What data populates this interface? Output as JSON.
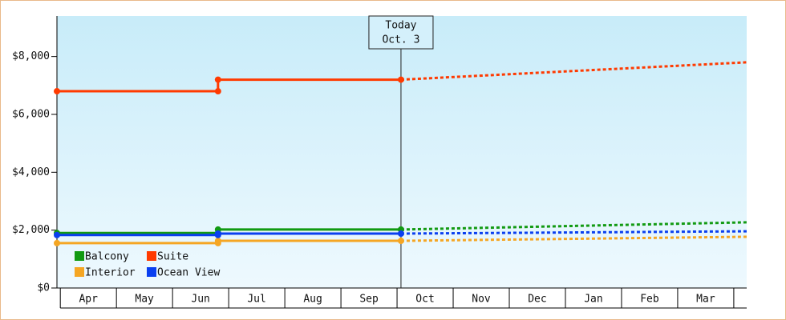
{
  "chart_data": {
    "type": "line",
    "x": [
      -0.06,
      2.81,
      2.81,
      6.07,
      12.23
    ],
    "xlim": [
      -0.06,
      12.23
    ],
    "categories": [
      "Apr",
      "May",
      "Jun",
      "Jul",
      "Aug",
      "Sep",
      "Oct",
      "Nov",
      "Dec",
      "Jan",
      "Feb",
      "Mar"
    ],
    "series": [
      {
        "name": "Balcony",
        "color": "#129a12",
        "values": [
          1900,
          1900,
          2020,
          2020,
          2270
        ]
      },
      {
        "name": "Suite",
        "color": "#ff3a00",
        "values": [
          6800,
          6800,
          7200,
          7200,
          7800
        ]
      },
      {
        "name": "Interior",
        "color": "#f5a623",
        "values": [
          1550,
          1550,
          1630,
          1630,
          1770
        ]
      },
      {
        "name": "Ocean View",
        "color": "#0a3ff0",
        "values": [
          1830,
          1830,
          1880,
          1880,
          1960
        ]
      }
    ],
    "today": {
      "x": 6.07,
      "label": "Today",
      "date": "Oct. 3"
    },
    "ylim": [
      0,
      9400
    ],
    "yticks": [
      {
        "value": 0,
        "label": "$0"
      },
      {
        "value": 2000,
        "label": "$2,000"
      },
      {
        "value": 4000,
        "label": "$4,000"
      },
      {
        "value": 6000,
        "label": "$6,000"
      },
      {
        "value": 8000,
        "label": "$8,000"
      }
    ]
  }
}
